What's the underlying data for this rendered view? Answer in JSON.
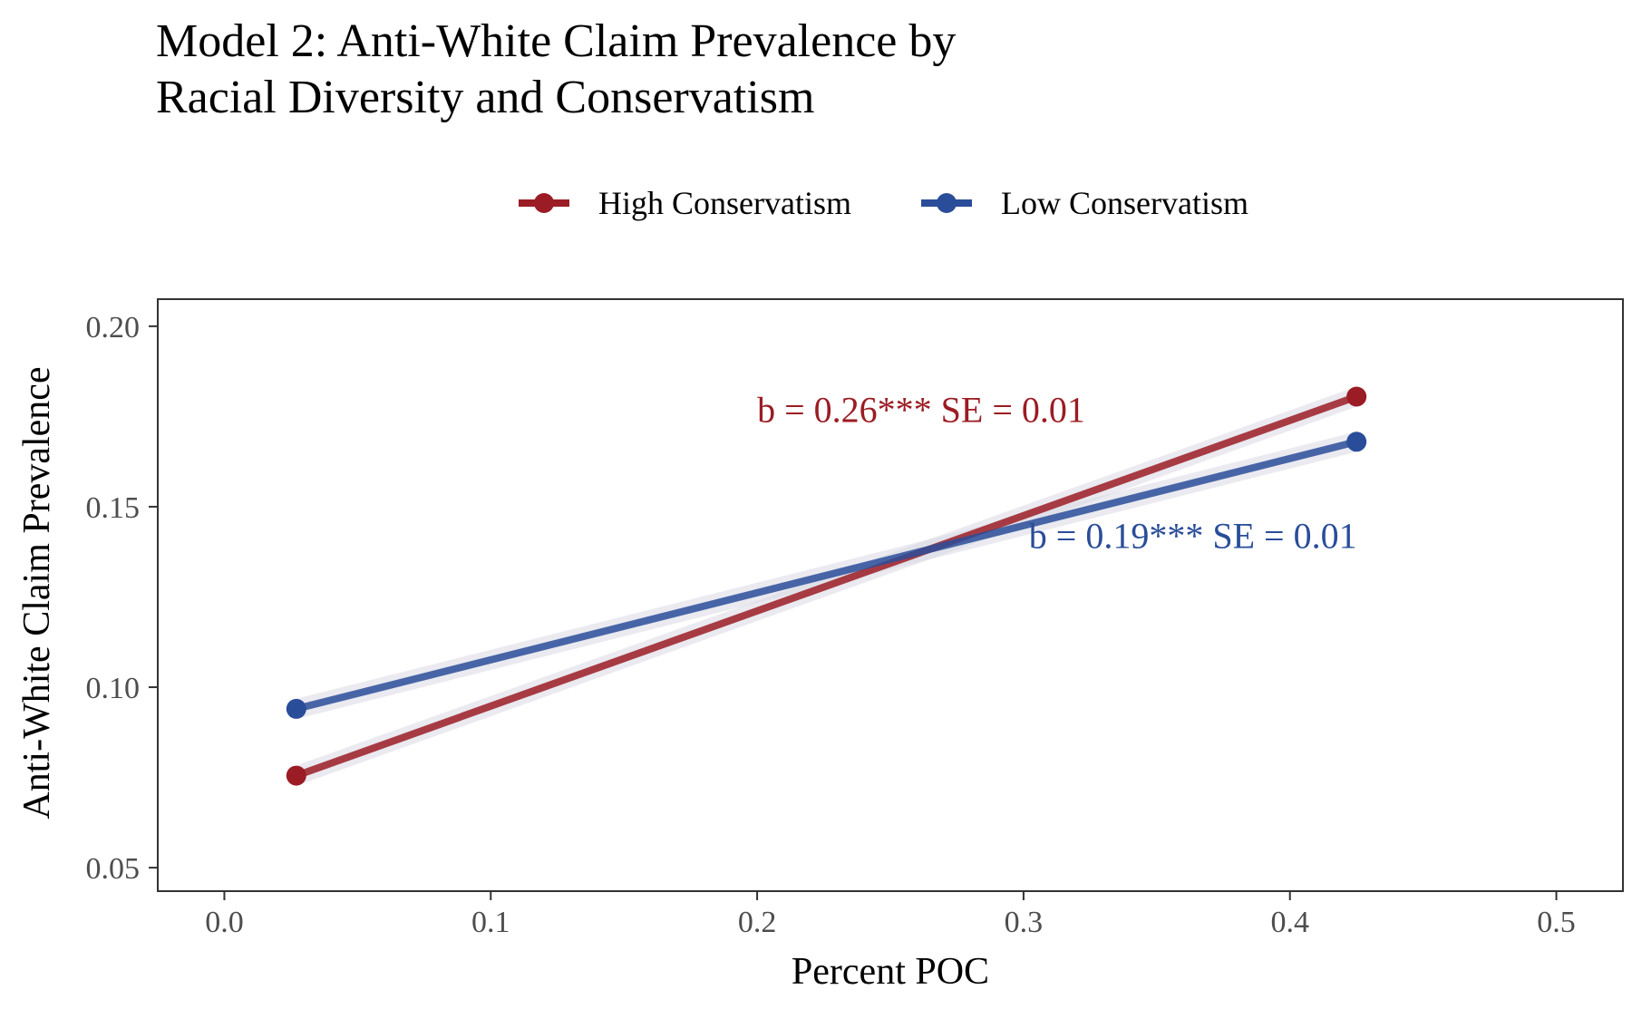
{
  "chart_data": {
    "type": "line",
    "title_lines": [
      "Model 2: Anti-White Claim Prevalence by",
      " Racial Diversity and Conservatism"
    ],
    "xlabel": "Percent POC",
    "ylabel": "Anti-White Claim Prevalence",
    "xlim": [
      -0.025,
      0.525
    ],
    "ylim": [
      0.0435,
      0.2075
    ],
    "xticks": [
      0.0,
      0.1,
      0.2,
      0.3,
      0.4,
      0.5
    ],
    "xtick_labels": [
      "0.0",
      "0.1",
      "0.2",
      "0.3",
      "0.4",
      "0.5"
    ],
    "yticks": [
      0.05,
      0.1,
      0.15,
      0.2
    ],
    "ytick_labels": [
      "0.05",
      "0.10",
      "0.15",
      "0.20"
    ],
    "grid": false,
    "legend_position": "top",
    "series": [
      {
        "name": "High Conservatism",
        "color": "#9b1c24",
        "x": [
          0.027,
          0.425
        ],
        "y": [
          0.0755,
          0.1805
        ],
        "ci_halfwidth": 0.0028
      },
      {
        "name": "Low Conservatism",
        "color": "#2a4d99",
        "x": [
          0.027,
          0.425
        ],
        "y": [
          0.094,
          0.168
        ],
        "ci_halfwidth": 0.0028
      }
    ],
    "annotations": [
      {
        "text": "b = 0.26*** SE = 0.01",
        "x": 0.2,
        "y": 0.1735,
        "color": "#9b1c24"
      },
      {
        "text": "b = 0.19*** SE = 0.01",
        "x": 0.302,
        "y": 0.1385,
        "color": "#2a4d99"
      }
    ]
  }
}
